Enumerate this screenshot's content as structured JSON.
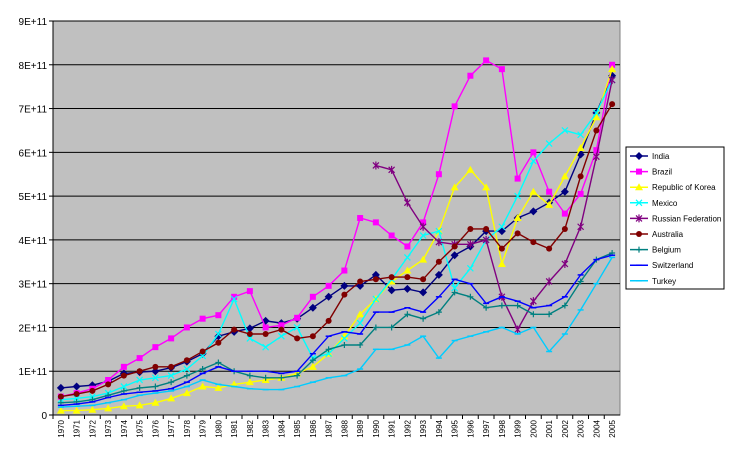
{
  "chart_data": {
    "type": "line",
    "title": "",
    "xlabel": "",
    "ylabel": "",
    "ylim": [
      0,
      900000000000
    ],
    "y_ticks": [
      "0",
      "1E+11",
      "2E+11",
      "3E+11",
      "4E+11",
      "5E+11",
      "6E+11",
      "7E+11",
      "8E+11",
      "9E+11"
    ],
    "grid": true,
    "legend_position": "right",
    "plot_background": "#c0c0c0",
    "categories": [
      "1970",
      "1971",
      "1972",
      "1973",
      "1974",
      "1975",
      "1976",
      "1977",
      "1978",
      "1979",
      "1980",
      "1981",
      "1982",
      "1983",
      "1984",
      "1985",
      "1986",
      "1987",
      "1988",
      "1989",
      "1990",
      "1991",
      "1992",
      "1993",
      "1994",
      "1995",
      "1996",
      "1997",
      "1998",
      "1999",
      "2000",
      "2001",
      "2002",
      "2003",
      "2004",
      "2005"
    ],
    "series": [
      {
        "name": "India",
        "color": "#000080",
        "marker": "diamond",
        "values": [
          62,
          65,
          68,
          77,
          95,
          98,
          100,
          108,
          122,
          140,
          180,
          190,
          198,
          215,
          210,
          220,
          245,
          270,
          295,
          295,
          320,
          285,
          288,
          280,
          320,
          365,
          385,
          420,
          420,
          450,
          465,
          485,
          510,
          595,
          690,
          775
        ]
      },
      {
        "name": "Brazil",
        "color": "#ff00ff",
        "marker": "square",
        "values": [
          42,
          50,
          60,
          80,
          110,
          130,
          155,
          175,
          200,
          220,
          228,
          270,
          283,
          200,
          205,
          222,
          270,
          295,
          330,
          450,
          440,
          410,
          385,
          440,
          550,
          705,
          775,
          810,
          790,
          540,
          600,
          510,
          460,
          505,
          605,
          800
        ]
      },
      {
        "name": "Republic of Korea",
        "color": "#ffff00",
        "marker": "triangle",
        "values": [
          10,
          10,
          12,
          15,
          20,
          22,
          28,
          38,
          50,
          65,
          62,
          70,
          75,
          80,
          85,
          95,
          110,
          140,
          180,
          230,
          265,
          305,
          330,
          355,
          420,
          520,
          560,
          520,
          345,
          450,
          510,
          480,
          545,
          610,
          680,
          790
        ]
      },
      {
        "name": "Mexico",
        "color": "#00ffff",
        "marker": "x",
        "values": [
          35,
          38,
          42,
          50,
          65,
          80,
          85,
          90,
          105,
          135,
          185,
          265,
          175,
          155,
          180,
          200,
          130,
          140,
          175,
          210,
          265,
          310,
          360,
          410,
          420,
          290,
          335,
          400,
          430,
          500,
          580,
          620,
          650,
          640,
          690,
          765
        ]
      },
      {
        "name": "Russian Federation",
        "color": "#800080",
        "marker": "star",
        "values": [
          null,
          null,
          null,
          null,
          null,
          null,
          null,
          null,
          null,
          null,
          null,
          null,
          null,
          null,
          null,
          null,
          null,
          null,
          null,
          null,
          570,
          560,
          485,
          430,
          395,
          390,
          390,
          400,
          270,
          195,
          260,
          305,
          345,
          430,
          590,
          765
        ]
      },
      {
        "name": "Australia",
        "color": "#800000",
        "marker": "circle",
        "values": [
          42,
          48,
          55,
          70,
          90,
          100,
          110,
          110,
          125,
          145,
          165,
          195,
          185,
          185,
          195,
          175,
          180,
          215,
          275,
          305,
          310,
          315,
          315,
          310,
          350,
          385,
          425,
          425,
          380,
          415,
          395,
          380,
          425,
          545,
          650,
          710
        ]
      },
      {
        "name": "Belgium",
        "color": "#008080",
        "marker": "plus",
        "values": [
          28,
          30,
          35,
          45,
          55,
          62,
          65,
          75,
          90,
          105,
          120,
          100,
          90,
          85,
          85,
          90,
          125,
          150,
          160,
          160,
          200,
          200,
          230,
          220,
          235,
          280,
          270,
          245,
          250,
          250,
          230,
          230,
          250,
          305,
          355,
          370
        ]
      },
      {
        "name": "Switzerland",
        "color": "#0000ff",
        "marker": "dash",
        "values": [
          22,
          25,
          30,
          40,
          48,
          52,
          55,
          60,
          75,
          95,
          110,
          100,
          100,
          100,
          95,
          100,
          140,
          180,
          190,
          185,
          235,
          235,
          245,
          235,
          270,
          310,
          300,
          255,
          270,
          260,
          245,
          250,
          270,
          320,
          355,
          365
        ]
      },
      {
        "name": "Turkey",
        "color": "#00ccff",
        "marker": "dash",
        "values": [
          18,
          20,
          22,
          28,
          35,
          45,
          50,
          55,
          65,
          80,
          70,
          65,
          60,
          58,
          58,
          65,
          75,
          85,
          90,
          105,
          150,
          150,
          160,
          180,
          130,
          170,
          180,
          190,
          200,
          185,
          200,
          145,
          185,
          240,
          300,
          360
        ]
      }
    ]
  }
}
